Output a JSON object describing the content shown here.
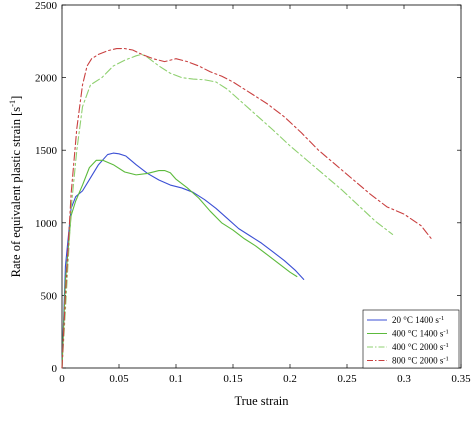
{
  "chart_data": {
    "type": "line",
    "title": "",
    "xlabel": "True strain",
    "ylabel": "Rate of equivalent plastic strain [s",
    "ylabel_sup": "-1",
    "ylabel_end": "]",
    "xlim": [
      0,
      0.35
    ],
    "ylim": [
      0,
      2500
    ],
    "xticks": [
      0,
      0.05,
      0.1,
      0.15,
      0.2,
      0.25,
      0.3,
      0.35
    ],
    "xtick_labels": [
      "0",
      "0.05",
      "0.1",
      "0.15",
      "0.2",
      "0.25",
      "0.3",
      "0.35"
    ],
    "yticks": [
      0,
      500,
      1000,
      1500,
      2000,
      2500
    ],
    "ytick_labels": [
      "0",
      "500",
      "1000",
      "1500",
      "2000",
      "2500"
    ],
    "grid": false,
    "legend_position": "bottom-right",
    "series": [
      {
        "name": "20 °C 1400 s",
        "name_sup": "-1",
        "color": "#3b4fd4",
        "dash": "solid",
        "x": [
          0,
          0.003,
          0.008,
          0.012,
          0.018,
          0.025,
          0.032,
          0.04,
          0.045,
          0.05,
          0.056,
          0.065,
          0.075,
          0.085,
          0.095,
          0.105,
          0.115,
          0.125,
          0.135,
          0.145,
          0.155,
          0.165,
          0.175,
          0.185,
          0.195,
          0.205,
          0.212
        ],
        "y": [
          0,
          700,
          1100,
          1180,
          1220,
          1310,
          1400,
          1470,
          1480,
          1475,
          1460,
          1400,
          1340,
          1295,
          1260,
          1240,
          1210,
          1160,
          1100,
          1030,
          960,
          910,
          860,
          800,
          740,
          670,
          610
        ]
      },
      {
        "name": "400 °C 1400 s",
        "name_sup": "-1",
        "color": "#5cba3c",
        "dash": "solid",
        "x": [
          0,
          0.003,
          0.008,
          0.012,
          0.018,
          0.024,
          0.03,
          0.036,
          0.045,
          0.055,
          0.065,
          0.075,
          0.085,
          0.09,
          0.095,
          0.1,
          0.11,
          0.12,
          0.13,
          0.14,
          0.15,
          0.16,
          0.17,
          0.18,
          0.19,
          0.2,
          0.206
        ],
        "y": [
          0,
          600,
          1050,
          1150,
          1260,
          1380,
          1430,
          1430,
          1400,
          1350,
          1330,
          1340,
          1360,
          1360,
          1345,
          1300,
          1240,
          1170,
          1080,
          1000,
          950,
          890,
          840,
          780,
          720,
          660,
          630
        ]
      },
      {
        "name": "400 °C 2000 s",
        "name_sup": "-1",
        "color": "#8fd070",
        "dash": "8,3,2,3",
        "x": [
          0,
          0.003,
          0.008,
          0.013,
          0.018,
          0.025,
          0.035,
          0.045,
          0.055,
          0.065,
          0.07,
          0.075,
          0.085,
          0.095,
          0.105,
          0.115,
          0.125,
          0.135,
          0.145,
          0.155,
          0.165,
          0.175,
          0.185,
          0.2,
          0.215,
          0.23,
          0.245,
          0.26,
          0.275,
          0.29
        ],
        "y": [
          0,
          400,
          1100,
          1500,
          1800,
          1950,
          2000,
          2080,
          2120,
          2150,
          2160,
          2140,
          2080,
          2030,
          2000,
          1990,
          1985,
          1970,
          1920,
          1850,
          1780,
          1710,
          1640,
          1530,
          1430,
          1330,
          1230,
          1120,
          1010,
          920
        ]
      },
      {
        "name": "800 °C 2000 s",
        "name_sup": "-1",
        "color": "#c94040",
        "dash": "8,3,2,3",
        "x": [
          0,
          0.003,
          0.008,
          0.013,
          0.018,
          0.022,
          0.026,
          0.032,
          0.04,
          0.048,
          0.055,
          0.062,
          0.07,
          0.08,
          0.09,
          0.1,
          0.11,
          0.12,
          0.13,
          0.14,
          0.15,
          0.16,
          0.17,
          0.18,
          0.195,
          0.21,
          0.225,
          0.24,
          0.255,
          0.27,
          0.285,
          0.3,
          0.315,
          0.325
        ],
        "y": [
          0,
          500,
          1200,
          1650,
          1950,
          2080,
          2130,
          2160,
          2185,
          2200,
          2200,
          2190,
          2160,
          2130,
          2110,
          2130,
          2110,
          2080,
          2040,
          2010,
          1970,
          1920,
          1870,
          1820,
          1730,
          1620,
          1500,
          1400,
          1300,
          1200,
          1110,
          1060,
          980,
          880
        ]
      }
    ]
  }
}
